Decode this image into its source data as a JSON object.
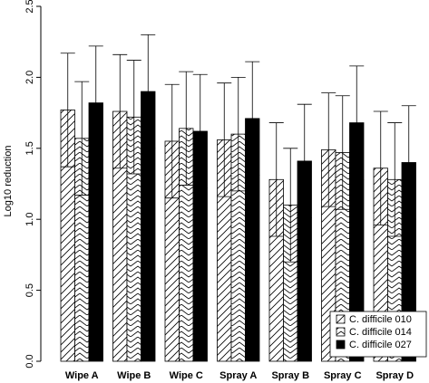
{
  "chart_data": {
    "type": "bar",
    "title": "",
    "xlabel": "",
    "ylabel": "Log10 reduction",
    "ylim": [
      0,
      2.5
    ],
    "yticks": [
      "0.0",
      "0.5",
      "1.0",
      "1.5",
      "2.0",
      "2.5"
    ],
    "categories": [
      "Wipe A",
      "Wipe B",
      "Wipe C",
      "Spray A",
      "Spray B",
      "Spray C",
      "Spray D"
    ],
    "series": [
      {
        "name": "C. difficile 010",
        "pattern": "hatch-up",
        "values": [
          1.77,
          1.76,
          1.55,
          1.56,
          1.28,
          1.49,
          1.36
        ],
        "error": [
          0.4,
          0.4,
          0.4,
          0.4,
          0.4,
          0.4,
          0.4
        ]
      },
      {
        "name": "C. difficile 014",
        "pattern": "chevron",
        "values": [
          1.57,
          1.72,
          1.64,
          1.6,
          1.1,
          1.47,
          1.28
        ],
        "error": [
          0.4,
          0.4,
          0.4,
          0.4,
          0.4,
          0.4,
          0.4
        ]
      },
      {
        "name": "C. difficile 027",
        "pattern": "solid",
        "values": [
          1.82,
          1.9,
          1.62,
          1.71,
          1.41,
          1.68,
          1.4
        ],
        "error": [
          0.4,
          0.4,
          0.4,
          0.4,
          0.4,
          0.4,
          0.4
        ]
      }
    ],
    "legend_position": "bottom-right",
    "grid": false,
    "colors": {
      "bar_fill": "#ffffff",
      "solid": "#000000",
      "stroke": "#000000"
    }
  }
}
